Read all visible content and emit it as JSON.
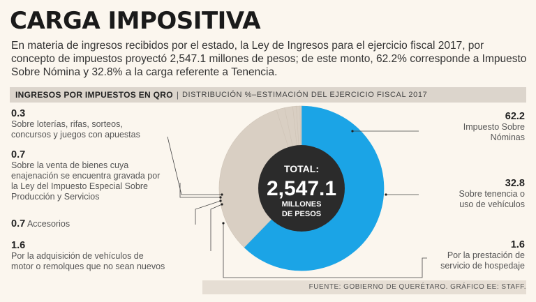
{
  "header": {
    "title": "CARGA IMPOSITIVA",
    "intro": "En materia de ingresos recibidos por el estado, la Ley de Ingresos para el ejercicio fiscal 2017,  por concepto de impuestos proyectó 2,547.1 millones de pesos; de este monto, 62.2% corresponde a Impuesto Sobre Nómina y 32.8% a la carga referente a Tenencia."
  },
  "bar": {
    "left": "INGRESOS POR IMPUESTOS EN QRO",
    "sep": "|",
    "right": "DISTRIBUCIÓN %–ESTIMACIÓN DEL EJERCICIO FISCAL 2017"
  },
  "center": {
    "line1": "TOTAL:",
    "line2": "2,547.1",
    "line3": "MILLONES",
    "line4": "DE PESOS"
  },
  "labels": {
    "loterias_val": "0.3",
    "loterias_txt1": "Sobre loterías, rifas, sorteos,",
    "loterias_txt2": "concursos y juegos con apuestas",
    "venta_val": "0.7",
    "venta_txt1": "Sobre la venta de bienes cuya",
    "venta_txt2": "enajenación se encuentra gravada por",
    "venta_txt3": "la Ley del Impuesto Especial Sobre",
    "venta_txt4": "Producción y Servicios",
    "acc_val": "0.7",
    "acc_txt": "Accesorios",
    "veh_val": "1.6",
    "veh_txt1": "Por la adquisición de vehículos de",
    "veh_txt2": "motor o remolques que no sean nuevos",
    "nom_val": "62.2",
    "nom_txt1": "Impuesto Sobre",
    "nom_txt2": "Nóminas",
    "ten_val": "32.8",
    "ten_txt1": "Sobre tenencia o",
    "ten_txt2": "uso de vehículos",
    "hos_val": "1.6",
    "hos_txt1": "Por la prestación de",
    "hos_txt2": "servicio de hospedaje"
  },
  "source": "FUENTE: GOBIERNO DE QUERÉTARO.  GRÁFICO EE: STAFF.",
  "colors": {
    "blue": "#1ba4e6",
    "grey": "#d9cfc3",
    "center": "#2b2b2b"
  },
  "chart_data": {
    "type": "pie",
    "title": "INGRESOS POR IMPUESTOS EN QRO",
    "categories": [
      "Impuesto Sobre Nóminas",
      "Sobre tenencia o uso de vehículos",
      "Por la prestación de servicio de hospedaje",
      "Por la adquisición de vehículos de motor o remolques que no sean nuevos",
      "Accesorios",
      "Sobre la venta de bienes cuya enajenación se encuentra gravada por la Ley del Impuesto Especial Sobre Producción y Servicios",
      "Sobre loterías, rifas, sorteos, concursos y juegos con apuestas"
    ],
    "values": [
      62.2,
      32.8,
      1.6,
      1.6,
      0.7,
      0.7,
      0.3
    ],
    "total": "2,547.1",
    "units": "%"
  }
}
